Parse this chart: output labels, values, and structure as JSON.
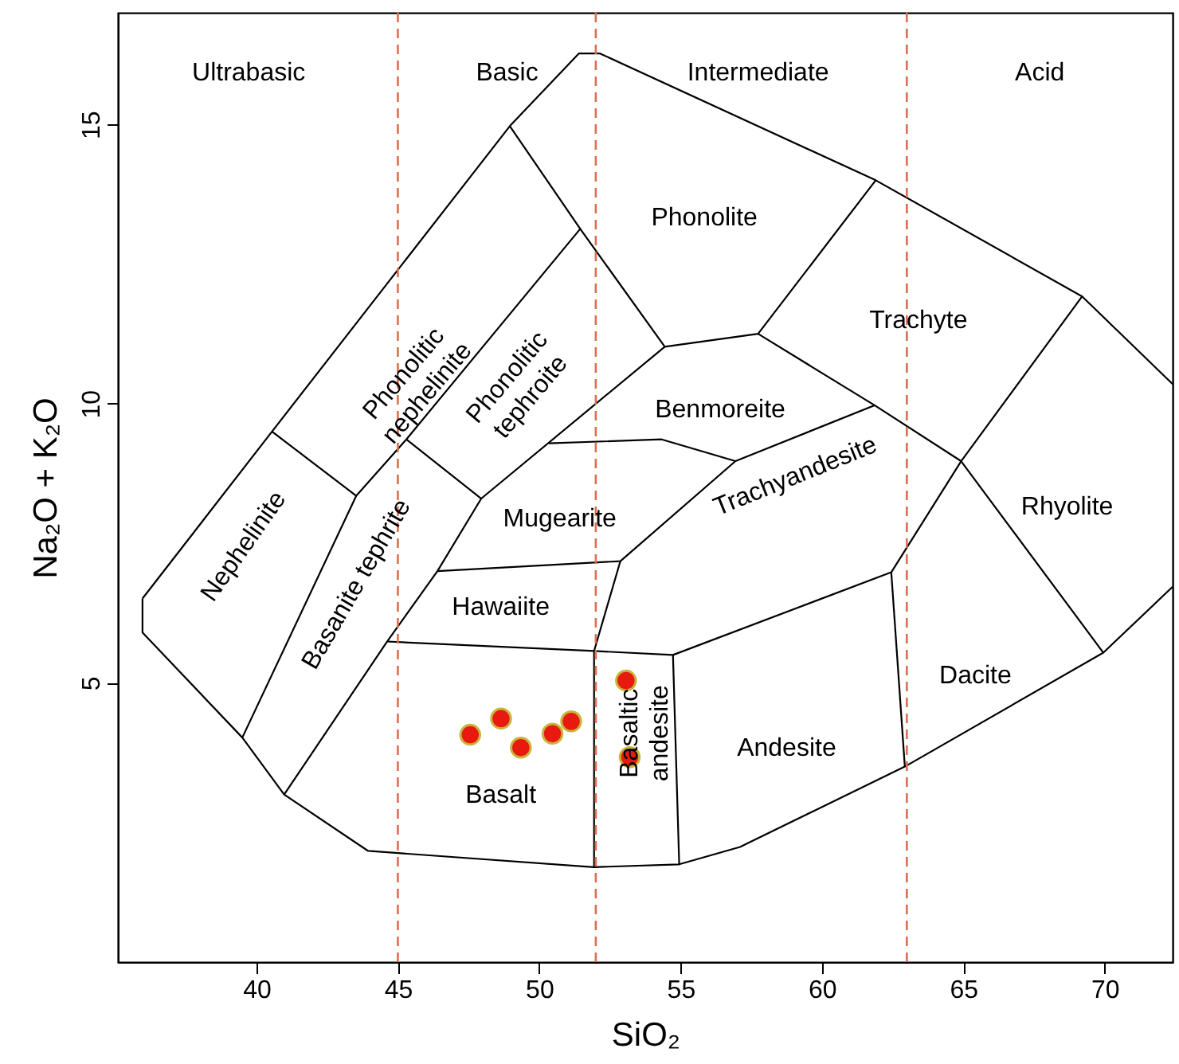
{
  "chart_data": {
    "type": "scatter",
    "xlabel": "SiO₂",
    "ylabel": "Na₂O + K₂O",
    "xlim": [
      35.1,
      72.4
    ],
    "ylim": [
      0,
      17
    ],
    "xticks": [
      40,
      45,
      50,
      55,
      60,
      65,
      70
    ],
    "yticks": [
      5,
      10,
      15
    ],
    "series": [
      {
        "type": "scatter",
        "marker": "circle",
        "color": "#e8190f",
        "x": [
          47.56,
          48.65,
          49.35,
          50.47,
          51.13,
          53.07,
          53.2
        ],
        "values": [
          4.07,
          4.36,
          3.84,
          4.09,
          4.31,
          5.04,
          3.67
        ]
      },
      {
        "type": "line",
        "color": "#000000",
        "x": [
          35.97,
          35.97,
          39.5,
          40.98,
          43.95,
          51.94,
          54.95,
          57.1,
          62.93,
          69.95,
          72.4
        ],
        "values": [
          6.51,
          5.9,
          4.02,
          3.0,
          1.99,
          1.7,
          1.75,
          2.06,
          3.5,
          5.54,
          6.72
        ]
      },
      {
        "type": "line",
        "color": "#000000",
        "x": [
          35.97,
          40.55,
          48.96,
          51.4,
          52.15,
          61.9,
          69.2,
          72.4
        ],
        "values": [
          6.51,
          9.5,
          14.97,
          16.27,
          16.27,
          14.0,
          11.92,
          10.35
        ]
      },
      {
        "type": "line",
        "color": "#000000",
        "x": [
          40.55,
          43.53
        ],
        "values": [
          9.5,
          8.35
        ]
      },
      {
        "type": "line",
        "color": "#000000",
        "x": [
          39.5,
          43.53,
          45.3,
          51.45
        ],
        "values": [
          4.02,
          8.35,
          9.36,
          13.13
        ]
      },
      {
        "type": "line",
        "color": "#000000",
        "x": [
          48.96,
          51.45,
          54.44,
          57.74,
          61.9
        ],
        "values": [
          14.97,
          13.13,
          11.02,
          11.25,
          14.0
        ]
      },
      {
        "type": "line",
        "color": "#000000",
        "x": [
          40.98,
          44.62,
          46.4,
          47.95,
          54.44
        ],
        "values": [
          3.0,
          5.74,
          7.0,
          8.3,
          11.02
        ]
      },
      {
        "type": "line",
        "color": "#000000",
        "x": [
          45.3,
          47.95
        ],
        "values": [
          9.36,
          8.3
        ]
      },
      {
        "type": "line",
        "color": "#000000",
        "x": [
          44.62,
          51.94,
          54.73,
          62.45,
          64.92,
          69.2
        ],
        "values": [
          5.74,
          5.57,
          5.5,
          6.98,
          8.97,
          11.92
        ]
      },
      {
        "type": "line",
        "color": "#000000",
        "x": [
          46.4,
          52.87,
          56.94,
          61.86,
          64.92,
          69.95
        ],
        "values": [
          7.0,
          7.18,
          8.97,
          9.97,
          8.97,
          5.54
        ]
      },
      {
        "type": "line",
        "color": "#000000",
        "x": [
          50.34,
          54.33,
          56.94
        ],
        "values": [
          9.29,
          9.36,
          8.97
        ]
      },
      {
        "type": "line",
        "color": "#000000",
        "x": [
          57.74,
          61.86
        ],
        "values": [
          11.25,
          9.97
        ]
      },
      {
        "type": "line",
        "color": "#000000",
        "x": [
          51.94,
          51.94,
          52.87
        ],
        "values": [
          1.7,
          5.57,
          7.18
        ]
      },
      {
        "type": "line",
        "color": "#000000",
        "x": [
          54.95,
          54.73
        ],
        "values": [
          1.75,
          5.5
        ]
      },
      {
        "type": "line",
        "color": "#000000",
        "x": [
          62.45,
          62.93
        ],
        "values": [
          6.98,
          3.5
        ]
      }
    ],
    "ref_lines": [
      {
        "axis": "x",
        "value": 45,
        "color": "#d9704f",
        "line_style": "dashed"
      },
      {
        "axis": "x",
        "value": 52,
        "color": "#d9704f",
        "line_style": "dashed"
      },
      {
        "axis": "x",
        "value": 63,
        "color": "#d9704f",
        "line_style": "dashed"
      }
    ],
    "annotations": [
      "Ultrabasic",
      "Basic",
      "Intermediate",
      "Acid",
      "Phonolite",
      "Trachyte",
      "Benmoreite",
      "Rhyolite",
      "Mugearite",
      "Trachyandesite",
      "Hawaiite",
      "Dacite",
      "Andesite",
      "Basalt",
      "Basaltic\nandesite",
      "Nephelinite",
      "Basanite tephrite",
      "Phonolitic\nnephelinite",
      "Phonolitic\ntephroite"
    ]
  }
}
